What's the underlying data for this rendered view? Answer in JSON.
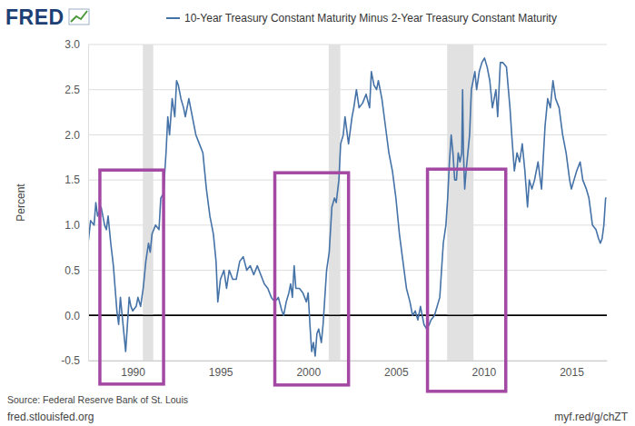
{
  "chart_data": {
    "type": "line",
    "logo": "FRED",
    "y_label": "Percent",
    "source": "Source: Federal Reserve Bank of St. Louis",
    "footer_left": "fred.stlouisfed.org",
    "footer_right": "myf.red/g/chZT",
    "legend": "top",
    "grid": true,
    "xlim": [
      1987.46,
      2017.02
    ],
    "xticks": [
      1990,
      1995,
      2000,
      2005,
      2010,
      2015
    ],
    "ylim": [
      -0.5,
      3.0
    ],
    "yticks": [
      -0.5,
      {
        "value": 0,
        "label": "0.0"
      },
      0.5,
      {
        "value": 1,
        "label": "1.0"
      },
      1.5,
      {
        "value": 2,
        "label": "2.0"
      },
      2.5,
      {
        "value": 3,
        "label": "3.0"
      }
    ],
    "recessions": [
      [
        1990.58,
        1991.17
      ],
      [
        2001.17,
        2001.83
      ],
      [
        2007.92,
        2009.42
      ]
    ],
    "highlights": [
      {
        "x": [
          1988.13,
          1991.76
        ],
        "y": [
          -0.76,
          1.61
        ]
      },
      {
        "x": [
          1998.1,
          2002.3
        ],
        "y": [
          -0.77,
          1.58
        ]
      },
      {
        "x": [
          2006.8,
          2011.26
        ],
        "y": [
          -0.84,
          1.62
        ]
      }
    ],
    "x": [
      1987.46,
      1987.6,
      1987.8,
      1987.9,
      1988.0,
      1988.2,
      1988.4,
      1988.5,
      1988.6,
      1988.75,
      1988.9,
      1989.0,
      1989.1,
      1989.2,
      1989.3,
      1989.4,
      1989.5,
      1989.6,
      1989.7,
      1989.8,
      1989.9,
      1990.0,
      1990.2,
      1990.3,
      1990.45,
      1990.6,
      1990.75,
      1990.9,
      1991.0,
      1991.1,
      1991.3,
      1991.5,
      1991.6,
      1991.75,
      1991.9,
      1992.0,
      1992.1,
      1992.25,
      1992.4,
      1992.5,
      1992.6,
      1992.75,
      1992.9,
      1993.0,
      1993.2,
      1993.4,
      1993.6,
      1993.8,
      1994.0,
      1994.2,
      1994.4,
      1994.6,
      1994.75,
      1994.85,
      1995.0,
      1995.2,
      1995.35,
      1995.5,
      1995.7,
      1995.9,
      1996.1,
      1996.3,
      1996.5,
      1996.7,
      1996.9,
      1997.1,
      1997.3,
      1997.5,
      1997.7,
      1997.9,
      1998.1,
      1998.3,
      1998.5,
      1998.6,
      1998.75,
      1998.9,
      1999.0,
      1999.1,
      1999.2,
      1999.3,
      1999.5,
      1999.7,
      1999.9,
      2000.0,
      2000.1,
      2000.2,
      2000.3,
      2000.4,
      2000.5,
      2000.6,
      2000.75,
      2000.85,
      2000.95,
      2001.05,
      2001.2,
      2001.35,
      2001.5,
      2001.6,
      2001.75,
      2001.85,
      2002.0,
      2002.1,
      2002.3,
      2002.5,
      2002.6,
      2002.75,
      2002.9,
      2003.1,
      2003.3,
      2003.5,
      2003.6,
      2003.75,
      2003.9,
      2004.0,
      2004.2,
      2004.4,
      2004.6,
      2004.8,
      2005.0,
      2005.2,
      2005.4,
      2005.6,
      2005.8,
      2005.95,
      2006.1,
      2006.25,
      2006.4,
      2006.5,
      2006.6,
      2006.75,
      2006.9,
      2007.0,
      2007.2,
      2007.35,
      2007.5,
      2007.6,
      2007.7,
      2007.85,
      2007.95,
      2008.05,
      2008.15,
      2008.25,
      2008.35,
      2008.45,
      2008.55,
      2008.65,
      2008.75,
      2008.8,
      2008.85,
      2008.92,
      2009.0,
      2009.1,
      2009.2,
      2009.3,
      2009.4,
      2009.5,
      2009.6,
      2009.75,
      2009.9,
      2010.05,
      2010.2,
      2010.35,
      2010.5,
      2010.7,
      2010.8,
      2010.95,
      2011.1,
      2011.3,
      2011.5,
      2011.6,
      2011.75,
      2011.9,
      2012.05,
      2012.2,
      2012.35,
      2012.5,
      2012.6,
      2012.75,
      2012.9,
      2013.1,
      2013.3,
      2013.5,
      2013.65,
      2013.8,
      2013.95,
      2014.1,
      2014.3,
      2014.5,
      2014.7,
      2014.9,
      2015.0,
      2015.15,
      2015.3,
      2015.5,
      2015.65,
      2015.85,
      2016.0,
      2016.2,
      2016.4,
      2016.55,
      2016.65,
      2016.75,
      2016.85,
      2016.95,
      2017.0
    ],
    "series": [
      {
        "name": "10-Year Treasury Constant Maturity Minus 2-Year Treasury Constant Maturity",
        "color": "#4572a7",
        "values": [
          0.8,
          1.05,
          1.0,
          1.25,
          1.1,
          1.2,
          1.0,
          0.95,
          1.1,
          0.8,
          0.55,
          0.3,
          0.05,
          -0.1,
          0.2,
          0.0,
          -0.2,
          -0.4,
          -0.1,
          0.2,
          0.1,
          0.05,
          0.1,
          0.2,
          0.1,
          0.3,
          0.6,
          0.8,
          0.7,
          0.9,
          1.0,
          0.95,
          1.3,
          1.35,
          1.8,
          2.2,
          2.0,
          2.4,
          2.2,
          2.6,
          2.55,
          2.4,
          2.3,
          2.2,
          2.4,
          2.2,
          2.0,
          1.9,
          1.8,
          1.4,
          1.1,
          0.9,
          0.6,
          0.15,
          0.4,
          0.5,
          0.3,
          0.5,
          0.4,
          0.4,
          0.6,
          0.65,
          0.5,
          0.55,
          0.45,
          0.55,
          0.45,
          0.35,
          0.3,
          0.2,
          0.15,
          0.2,
          0.05,
          0.0,
          0.15,
          0.25,
          0.35,
          0.2,
          0.55,
          0.3,
          0.3,
          0.25,
          0.15,
          0.25,
          -0.1,
          -0.4,
          -0.3,
          -0.45,
          -0.2,
          -0.15,
          -0.3,
          -0.1,
          0.2,
          0.5,
          0.7,
          1.2,
          1.3,
          1.25,
          1.5,
          1.9,
          2.0,
          2.2,
          1.9,
          2.2,
          2.3,
          2.5,
          2.3,
          2.35,
          2.45,
          2.3,
          2.7,
          2.55,
          2.5,
          2.6,
          2.4,
          2.1,
          1.8,
          1.6,
          1.3,
          0.9,
          0.6,
          0.3,
          0.15,
          0.0,
          0.05,
          -0.05,
          0.1,
          0.0,
          -0.1,
          -0.15,
          -0.1,
          -0.05,
          0.0,
          0.1,
          0.2,
          0.5,
          0.8,
          1.0,
          1.3,
          1.7,
          2.0,
          1.8,
          1.5,
          1.5,
          1.8,
          1.7,
          1.8,
          2.5,
          1.8,
          1.4,
          1.6,
          1.8,
          2.0,
          2.5,
          2.6,
          2.7,
          2.5,
          2.7,
          2.8,
          2.85,
          2.75,
          2.6,
          2.3,
          2.5,
          2.2,
          2.8,
          2.8,
          2.75,
          2.3,
          2.0,
          1.6,
          1.8,
          1.7,
          1.9,
          1.6,
          1.2,
          1.5,
          1.4,
          1.5,
          1.7,
          1.4,
          2.1,
          2.4,
          2.3,
          2.6,
          2.4,
          2.3,
          2.0,
          1.8,
          1.5,
          1.4,
          1.5,
          1.6,
          1.7,
          1.5,
          1.4,
          1.3,
          1.0,
          0.95,
          0.85,
          0.8,
          0.85,
          1.0,
          1.3,
          1.3
        ]
      }
    ]
  }
}
